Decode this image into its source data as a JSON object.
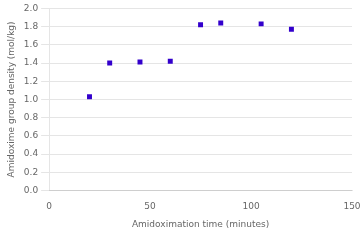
{
  "chart_data": {
    "type": "scatter",
    "x": [
      20,
      30,
      45,
      60,
      75,
      85,
      105,
      120
    ],
    "values": [
      1.03,
      1.4,
      1.41,
      1.42,
      1.82,
      1.84,
      1.83,
      1.77
    ],
    "color": "#3300CC",
    "marker": "square",
    "xlabel": "Amidoximation time (minutes)",
    "ylabel": "Amidoxime group density (mol/kg)",
    "xlim": [
      0,
      150
    ],
    "ylim": [
      0.0,
      2.0
    ],
    "xticks": [
      0,
      50,
      100,
      150
    ],
    "yticks": [
      {
        "value": 0.0,
        "label": "0.0"
      },
      0.2,
      0.4,
      0.6,
      0.8,
      {
        "value": 1.0,
        "label": "1.0"
      },
      1.2,
      1.4,
      1.6,
      1.8,
      {
        "value": 2.0,
        "label": "2.0"
      }
    ],
    "grid": "y"
  }
}
